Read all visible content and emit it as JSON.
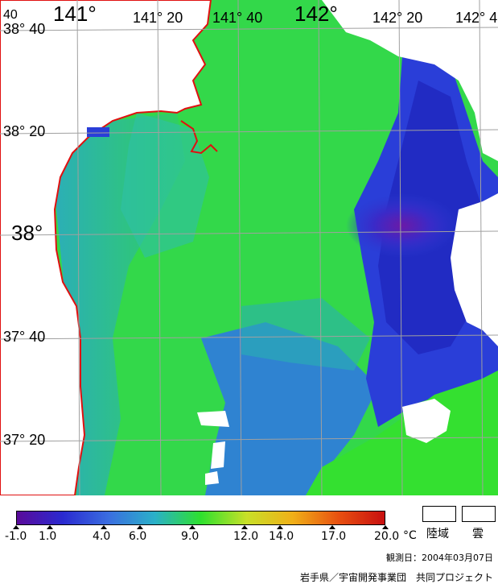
{
  "map": {
    "lon_labels": [
      "141°",
      "141° 20",
      "141° 40",
      "142°",
      "142° 20",
      "142° 4"
    ],
    "lat_labels": [
      "38° 40",
      "38° 20",
      "38°",
      "37° 40",
      "37° 20"
    ],
    "corner_label": "40"
  },
  "colorbar": {
    "ticks": [
      "-1.0",
      "1.0",
      "4.0",
      "6.0",
      "9.0",
      "12.0",
      "14.0",
      "17.0",
      "20.0"
    ],
    "unit": "°C",
    "colors": [
      "#5a0a9a",
      "#2a2ad0",
      "#3a6ee0",
      "#2ab0c8",
      "#2ee02e",
      "#c8e028",
      "#f0b018",
      "#e85010",
      "#c81010"
    ]
  },
  "legend": {
    "land": "陸域",
    "cloud": "雲"
  },
  "footer": {
    "observation_date": "観測日：2004年03月07日",
    "credit": "岩手県／宇宙開発事業団　共同プロジェクト"
  }
}
